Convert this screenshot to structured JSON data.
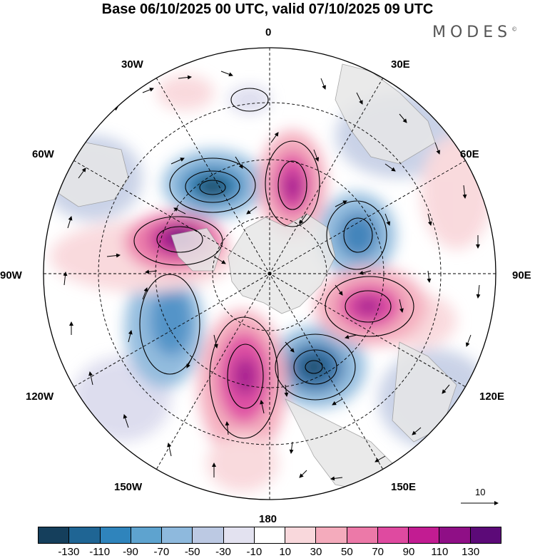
{
  "title": "Base 06/10/2025 00 UTC, valid 07/10/2025 09 UTC",
  "brand": "MODES",
  "brand_mark": "©",
  "map_labels": {
    "lon_0": "0",
    "lon_30e": "30E",
    "lon_60e": "60E",
    "lon_90e": "90E",
    "lon_120e": "120E",
    "lon_150e": "150E",
    "lon_180": "180",
    "lon_150w": "150W",
    "lon_120w": "120W",
    "lon_90w": "90W",
    "lon_60w": "60W",
    "lon_30w": "30W"
  },
  "vector_reference": "10",
  "colorbar": {
    "colors": [
      "#153f5c",
      "#1f6594",
      "#2f84bc",
      "#5ea3cf",
      "#8eb9dd",
      "#bcc9e3",
      "#e3e2f0",
      "#ffffff",
      "#f9d8dc",
      "#f4abbc",
      "#ec79a8",
      "#df4aa0",
      "#c21c92",
      "#8f0f86",
      "#5c0a78"
    ],
    "ticks": [
      "-130",
      "-110",
      "-90",
      "-70",
      "-50",
      "-30",
      "-10",
      "10",
      "30",
      "50",
      "70",
      "90",
      "110",
      "130"
    ]
  }
}
